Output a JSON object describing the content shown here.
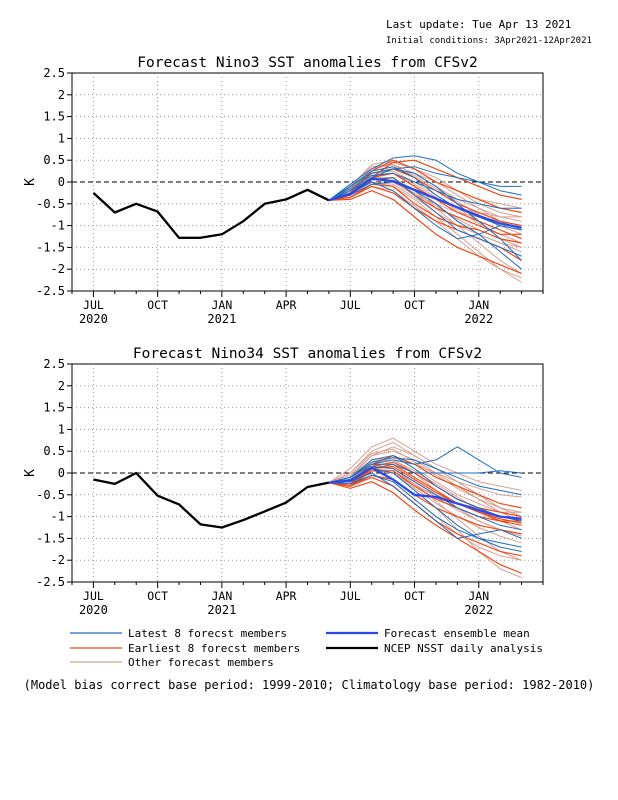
{
  "header": {
    "last_update": "Last update: Tue Apr 13 2021",
    "initial_conditions": "Initial conditions: 3Apr2021-12Apr2021"
  },
  "legend": {
    "items": [
      {
        "label": "Latest 8 forecst members",
        "color": "#1f6fbf"
      },
      {
        "label": "Earliest 8 forecst members",
        "color": "#ee4a1a"
      },
      {
        "label": "Other forecast members",
        "color": "#d8a092"
      },
      {
        "label": "Forecast ensemble mean",
        "color": "#2b48e8"
      },
      {
        "label": "NCEP NSST daily analysis",
        "color": "#000000"
      }
    ]
  },
  "footnote": "(Model bias correct base period: 1999-2010; Climatology base period: 1982-2010)",
  "chart_data": [
    {
      "type": "line",
      "title": "Forecast Nino3 SST anomalies from CFSv2",
      "ylabel": "K",
      "ylim": [
        -2.5,
        2.5
      ],
      "yticks": [
        "2.5",
        "2",
        "1.5",
        "1",
        "0.5",
        "0",
        "-0.5",
        "-1",
        "-1.5",
        "-2",
        "-2.5"
      ],
      "xticks": [
        {
          "label": "JUL",
          "year": "2020"
        },
        {
          "label": "OCT",
          "year": ""
        },
        {
          "label": "JAN",
          "year": "2021"
        },
        {
          "label": "APR",
          "year": ""
        },
        {
          "label": "JUL",
          "year": ""
        },
        {
          "label": "OCT",
          "year": ""
        },
        {
          "label": "JAN",
          "year": "2022"
        }
      ],
      "grid": true,
      "zero_line": "dashed",
      "series": [
        {
          "name": "NCEP NSST daily analysis",
          "color": "#000000",
          "x": [
            4,
            5,
            6,
            7,
            8,
            9,
            10,
            11,
            12,
            13,
            14,
            15
          ],
          "values": [
            -0.25,
            -0.7,
            -0.5,
            -0.68,
            -1.28,
            -1.28,
            -1.2,
            -0.9,
            -0.5,
            -0.4,
            -0.18,
            -0.42
          ]
        },
        {
          "name": "Forecast ensemble mean",
          "color": "#2b48e8",
          "x": [
            15,
            16,
            17,
            18,
            19,
            20,
            21,
            22,
            23,
            24
          ],
          "values": [
            -0.42,
            -0.28,
            0.08,
            0.02,
            -0.18,
            -0.38,
            -0.58,
            -0.78,
            -0.95,
            -1.05
          ]
        }
      ],
      "members": {
        "latest": [
          [
            -0.42,
            -0.1,
            0.25,
            0.35,
            0.1,
            -0.3,
            -0.6,
            -0.8,
            -1.0,
            -1.1
          ],
          [
            -0.42,
            -0.05,
            0.3,
            0.55,
            0.6,
            0.5,
            0.2,
            0.0,
            -0.2,
            -0.3
          ],
          [
            -0.42,
            -0.2,
            0.05,
            0.1,
            -0.3,
            -0.7,
            -1.1,
            -1.3,
            -1.5,
            -1.7
          ],
          [
            -0.42,
            -0.15,
            0.15,
            0.2,
            0.0,
            -0.2,
            -0.4,
            -0.5,
            -0.6,
            -0.6
          ],
          [
            -0.42,
            -0.1,
            0.2,
            0.3,
            0.2,
            -0.1,
            -0.5,
            -0.9,
            -1.3,
            -1.8
          ],
          [
            -0.42,
            -0.25,
            0.0,
            -0.2,
            -0.6,
            -1.0,
            -1.3,
            -1.2,
            -1.0,
            -1.1
          ],
          [
            -0.42,
            -0.2,
            0.1,
            0.3,
            0.35,
            0.2,
            0.1,
            0.0,
            -0.1,
            -0.1
          ],
          [
            -0.42,
            -0.3,
            -0.05,
            0.0,
            -0.2,
            -0.5,
            -0.9,
            -1.2,
            -1.6,
            -2.0
          ]
        ],
        "earliest": [
          [
            -0.42,
            -0.3,
            0.1,
            0.45,
            0.5,
            0.3,
            0.1,
            -0.1,
            -0.3,
            -0.4
          ],
          [
            -0.42,
            -0.35,
            -0.1,
            -0.25,
            -0.6,
            -0.9,
            -1.1,
            -1.3,
            -1.5,
            -1.8
          ],
          [
            -0.42,
            -0.2,
            0.2,
            0.3,
            0.1,
            -0.2,
            -0.5,
            -0.7,
            -0.9,
            -1.0
          ],
          [
            -0.42,
            -0.4,
            -0.2,
            -0.4,
            -0.8,
            -1.2,
            -1.5,
            -1.7,
            -1.9,
            -2.1
          ],
          [
            -0.42,
            -0.3,
            0.05,
            0.1,
            -0.3,
            -0.6,
            -0.8,
            -1.0,
            -1.2,
            -1.2
          ],
          [
            -0.42,
            -0.25,
            0.25,
            0.5,
            0.3,
            0.0,
            -0.2,
            -0.4,
            -0.6,
            -0.7
          ],
          [
            -0.42,
            -0.35,
            -0.05,
            -0.1,
            -0.5,
            -0.8,
            -1.0,
            -1.1,
            -1.3,
            -1.4
          ],
          [
            -0.42,
            -0.3,
            0.1,
            0.2,
            -0.1,
            -0.4,
            -0.7,
            -0.9,
            -1.1,
            -1.3
          ]
        ],
        "other": [
          [
            -0.42,
            -0.2,
            0.3,
            0.4,
            0.2,
            -0.1,
            -0.4,
            -0.6,
            -0.8,
            -0.9
          ],
          [
            -0.42,
            -0.1,
            0.4,
            0.5,
            0.3,
            0.1,
            -0.2,
            -0.5,
            -0.7,
            -0.8
          ],
          [
            -0.42,
            -0.3,
            0.0,
            -0.1,
            -0.4,
            -0.8,
            -1.2,
            -1.6,
            -2.0,
            -2.3
          ],
          [
            -0.42,
            -0.2,
            0.2,
            0.25,
            0.0,
            -0.3,
            -0.6,
            -0.9,
            -1.1,
            -1.3
          ],
          [
            -0.42,
            -0.15,
            0.1,
            0.0,
            -0.3,
            -0.5,
            -0.7,
            -0.8,
            -0.9,
            -1.0
          ],
          [
            -0.42,
            -0.25,
            0.15,
            0.2,
            -0.1,
            -0.5,
            -0.9,
            -1.2,
            -1.4,
            -1.5
          ],
          [
            -0.42,
            -0.3,
            0.05,
            0.1,
            -0.2,
            -0.4,
            -0.6,
            -0.7,
            -0.8,
            -0.8
          ],
          [
            -0.42,
            -0.2,
            0.25,
            0.35,
            0.15,
            -0.15,
            -0.45,
            -0.75,
            -1.0,
            -1.2
          ],
          [
            -0.42,
            -0.35,
            -0.1,
            -0.2,
            -0.55,
            -0.9,
            -1.3,
            -1.7,
            -2.0,
            -2.2
          ],
          [
            -0.42,
            -0.1,
            0.35,
            0.4,
            0.1,
            -0.2,
            -0.5,
            -0.7,
            -0.9,
            -1.0
          ],
          [
            -0.42,
            -0.25,
            0.1,
            0.1,
            -0.2,
            -0.6,
            -1.0,
            -1.4,
            -1.8,
            -2.1
          ],
          [
            -0.42,
            -0.2,
            0.2,
            0.3,
            0.2,
            0.0,
            -0.2,
            -0.4,
            -0.5,
            -0.6
          ],
          [
            -0.42,
            -0.3,
            0.0,
            -0.05,
            -0.35,
            -0.7,
            -1.0,
            -1.2,
            -1.4,
            -1.6
          ],
          [
            -0.42,
            -0.15,
            0.3,
            0.45,
            0.3,
            0.0,
            -0.3,
            -0.6,
            -0.9,
            -1.1
          ],
          [
            -0.42,
            -0.25,
            0.05,
            0.0,
            -0.25,
            -0.55,
            -0.85,
            -1.1,
            -1.3,
            -1.5
          ],
          [
            -0.42,
            -0.2,
            0.15,
            0.2,
            -0.05,
            -0.35,
            -0.65,
            -0.95,
            -1.2,
            -1.4
          ]
        ]
      }
    },
    {
      "type": "line",
      "title": "Forecast Nino34 SST anomalies from CFSv2",
      "ylabel": "K",
      "ylim": [
        -2.5,
        2.5
      ],
      "yticks": [
        "2.5",
        "2",
        "1.5",
        "1",
        "0.5",
        "0",
        "-0.5",
        "-1",
        "-1.5",
        "-2",
        "-2.5"
      ],
      "xticks": [
        {
          "label": "JUL",
          "year": "2020"
        },
        {
          "label": "OCT",
          "year": ""
        },
        {
          "label": "JAN",
          "year": "2021"
        },
        {
          "label": "APR",
          "year": ""
        },
        {
          "label": "JUL",
          "year": ""
        },
        {
          "label": "OCT",
          "year": ""
        },
        {
          "label": "JAN",
          "year": "2022"
        }
      ],
      "grid": true,
      "zero_line": "dashed",
      "series": [
        {
          "name": "NCEP NSST daily analysis",
          "color": "#000000",
          "x": [
            4,
            5,
            6,
            7,
            8,
            9,
            10,
            11,
            12,
            13,
            14,
            15
          ],
          "values": [
            -0.15,
            -0.25,
            0.0,
            -0.52,
            -0.72,
            -1.18,
            -1.25,
            -1.08,
            -0.88,
            -0.68,
            -0.32,
            -0.22
          ]
        },
        {
          "name": "Forecast ensemble mean",
          "color": "#2b48e8",
          "x": [
            15,
            16,
            17,
            18,
            19,
            20,
            21,
            22,
            23,
            24
          ],
          "values": [
            -0.22,
            -0.18,
            0.12,
            -0.15,
            -0.5,
            -0.55,
            -0.7,
            -0.85,
            -1.0,
            -1.05
          ]
        }
      ],
      "members": {
        "latest": [
          [
            -0.22,
            -0.1,
            0.2,
            0.3,
            0.2,
            0.3,
            0.6,
            0.3,
            0.0,
            -0.1
          ],
          [
            -0.22,
            -0.15,
            0.1,
            0.0,
            -0.4,
            -0.8,
            -1.2,
            -1.5,
            -1.7,
            -1.8
          ],
          [
            -0.22,
            -0.1,
            0.3,
            0.4,
            0.1,
            -0.3,
            -0.6,
            -0.8,
            -1.0,
            -1.1
          ],
          [
            -0.22,
            -0.2,
            0.0,
            -0.3,
            -0.7,
            -1.1,
            -1.5,
            -1.4,
            -1.3,
            -1.5
          ],
          [
            -0.22,
            -0.1,
            0.25,
            0.35,
            0.3,
            0.1,
            -0.1,
            -0.3,
            -0.4,
            -0.5
          ],
          [
            -0.22,
            -0.15,
            0.15,
            0.1,
            -0.2,
            -0.5,
            -0.8,
            -1.0,
            -1.2,
            -1.3
          ],
          [
            -0.22,
            -0.1,
            0.2,
            0.2,
            0.0,
            0.0,
            0.0,
            0.0,
            0.05,
            0.0
          ],
          [
            -0.22,
            -0.25,
            -0.05,
            -0.2,
            -0.6,
            -1.0,
            -1.3,
            -1.5,
            -1.6,
            -1.7
          ]
        ],
        "earliest": [
          [
            -0.22,
            -0.3,
            0.1,
            0.2,
            -0.1,
            -0.4,
            -0.7,
            -0.9,
            -1.1,
            -1.2
          ],
          [
            -0.22,
            -0.3,
            -0.1,
            -0.3,
            -0.7,
            -1.1,
            -1.4,
            -1.6,
            -1.8,
            -1.9
          ],
          [
            -0.22,
            -0.25,
            0.15,
            0.25,
            0.0,
            -0.3,
            -0.6,
            -0.8,
            -0.9,
            -1.0
          ],
          [
            -0.22,
            -0.35,
            -0.2,
            -0.45,
            -0.85,
            -1.2,
            -1.5,
            -1.8,
            -2.1,
            -2.3
          ],
          [
            -0.22,
            -0.3,
            0.05,
            0.05,
            -0.3,
            -0.6,
            -0.8,
            -1.0,
            -1.1,
            -1.1
          ],
          [
            -0.22,
            -0.2,
            0.2,
            0.4,
            0.2,
            -0.1,
            -0.3,
            -0.5,
            -0.7,
            -0.8
          ],
          [
            -0.22,
            -0.3,
            -0.05,
            -0.15,
            -0.5,
            -0.8,
            -1.0,
            -1.2,
            -1.3,
            -1.4
          ],
          [
            -0.22,
            -0.25,
            0.1,
            0.15,
            -0.15,
            -0.45,
            -0.7,
            -0.9,
            -1.05,
            -1.15
          ]
        ],
        "other": [
          [
            -0.22,
            0.1,
            0.6,
            0.8,
            0.5,
            0.2,
            0.0,
            -0.2,
            -0.3,
            -0.4
          ],
          [
            -0.22,
            0.0,
            0.5,
            0.7,
            0.4,
            0.1,
            -0.2,
            -0.5,
            -0.8,
            -1.0
          ],
          [
            -0.22,
            -0.2,
            0.1,
            0.0,
            -0.4,
            -0.8,
            -1.3,
            -1.8,
            -2.2,
            -2.4
          ],
          [
            -0.22,
            -0.1,
            0.3,
            0.4,
            0.1,
            -0.2,
            -0.5,
            -0.7,
            -0.9,
            -1.1
          ],
          [
            -0.22,
            -0.15,
            0.2,
            0.1,
            -0.2,
            -0.5,
            -0.7,
            -0.9,
            -1.0,
            -1.1
          ],
          [
            -0.22,
            -0.2,
            0.25,
            0.3,
            0.0,
            -0.4,
            -0.8,
            -1.1,
            -1.3,
            -1.4
          ],
          [
            -0.22,
            -0.25,
            0.05,
            0.0,
            -0.3,
            -0.5,
            -0.7,
            -0.8,
            -0.9,
            -0.9
          ],
          [
            -0.22,
            -0.1,
            0.4,
            0.5,
            0.3,
            0.0,
            -0.3,
            -0.6,
            -0.9,
            -1.1
          ],
          [
            -0.22,
            -0.3,
            -0.05,
            -0.2,
            -0.6,
            -1.0,
            -1.4,
            -1.7,
            -1.9,
            -2.0
          ],
          [
            -0.22,
            0.0,
            0.45,
            0.55,
            0.25,
            -0.05,
            -0.35,
            -0.6,
            -0.8,
            -0.9
          ],
          [
            -0.22,
            -0.2,
            0.15,
            0.1,
            -0.25,
            -0.65,
            -1.05,
            -1.45,
            -1.8,
            -2.0
          ],
          [
            -0.22,
            -0.15,
            0.3,
            0.35,
            0.2,
            0.0,
            -0.2,
            -0.35,
            -0.5,
            -0.55
          ],
          [
            -0.22,
            -0.25,
            0.05,
            0.0,
            -0.35,
            -0.7,
            -1.0,
            -1.25,
            -1.45,
            -1.6
          ],
          [
            -0.22,
            -0.05,
            0.4,
            0.6,
            0.4,
            0.1,
            -0.2,
            -0.5,
            -0.8,
            -1.0
          ],
          [
            -0.22,
            -0.2,
            0.1,
            0.05,
            -0.25,
            -0.55,
            -0.85,
            -1.1,
            -1.3,
            -1.45
          ],
          [
            -0.22,
            -0.15,
            0.25,
            0.3,
            0.05,
            -0.25,
            -0.55,
            -0.85,
            -1.1,
            -1.3
          ]
        ]
      }
    }
  ]
}
